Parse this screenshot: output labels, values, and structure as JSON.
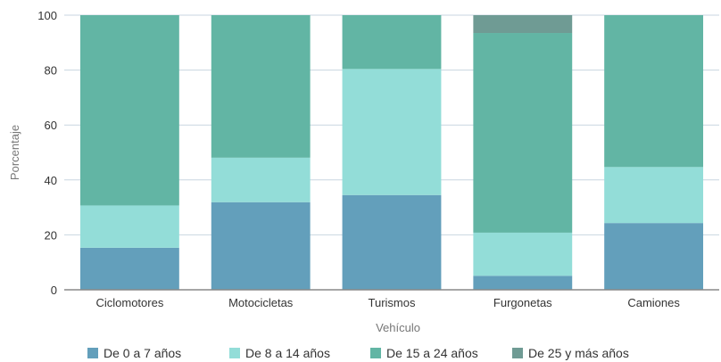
{
  "chart_data": {
    "type": "bar",
    "stacked": true,
    "xlabel": "Vehículo",
    "ylabel": "Porcentaje",
    "ylim": [
      0,
      100
    ],
    "yticks": [
      0,
      20,
      40,
      60,
      80,
      100
    ],
    "grid": true,
    "legend_position": "bottom",
    "categories": [
      "Ciclomotores",
      "Motocicletas",
      "Turismos",
      "Furgonetas",
      "Camiones"
    ],
    "series": [
      {
        "name": "De 0 a 7 años",
        "color": "#639fbb",
        "values": [
          15.3,
          31.9,
          34.5,
          5.1,
          24.3
        ]
      },
      {
        "name": "De 8 a 14 años",
        "color": "#93ddd8",
        "values": [
          15.4,
          16.2,
          45.9,
          15.7,
          20.4
        ]
      },
      {
        "name": "De 15 a 24 años",
        "color": "#62b5a4",
        "values": [
          69.3,
          51.9,
          19.6,
          72.7,
          55.3
        ]
      },
      {
        "name": "De 25 y más años",
        "color": "#6f9b94",
        "values": [
          0,
          0,
          0,
          6.5,
          0
        ]
      }
    ]
  }
}
